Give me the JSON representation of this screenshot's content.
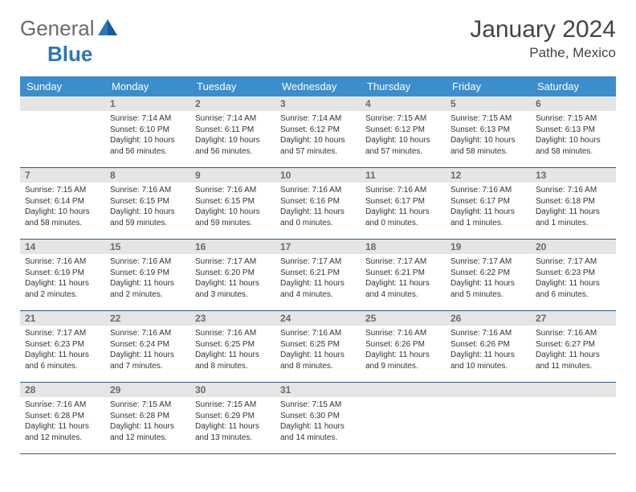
{
  "logo": {
    "text1": "General",
    "text2": "Blue"
  },
  "title": "January 2024",
  "location": "Pathe, Mexico",
  "colors": {
    "header_bg": "#3c8dcc",
    "header_text": "#ffffff",
    "daynum_bg": "#e5e5e5",
    "daynum_text": "#6a6a6a",
    "row_border": "#2d5b87",
    "logo_gray": "#6a6a6a",
    "logo_blue": "#2d76b5"
  },
  "weekdays": [
    "Sunday",
    "Monday",
    "Tuesday",
    "Wednesday",
    "Thursday",
    "Friday",
    "Saturday"
  ],
  "weeks": [
    [
      null,
      {
        "n": "1",
        "sr": "7:14 AM",
        "ss": "6:10 PM",
        "dh": "10",
        "dm": "56"
      },
      {
        "n": "2",
        "sr": "7:14 AM",
        "ss": "6:11 PM",
        "dh": "10",
        "dm": "56"
      },
      {
        "n": "3",
        "sr": "7:14 AM",
        "ss": "6:12 PM",
        "dh": "10",
        "dm": "57"
      },
      {
        "n": "4",
        "sr": "7:15 AM",
        "ss": "6:12 PM",
        "dh": "10",
        "dm": "57"
      },
      {
        "n": "5",
        "sr": "7:15 AM",
        "ss": "6:13 PM",
        "dh": "10",
        "dm": "58"
      },
      {
        "n": "6",
        "sr": "7:15 AM",
        "ss": "6:13 PM",
        "dh": "10",
        "dm": "58"
      }
    ],
    [
      {
        "n": "7",
        "sr": "7:15 AM",
        "ss": "6:14 PM",
        "dh": "10",
        "dm": "58"
      },
      {
        "n": "8",
        "sr": "7:16 AM",
        "ss": "6:15 PM",
        "dh": "10",
        "dm": "59"
      },
      {
        "n": "9",
        "sr": "7:16 AM",
        "ss": "6:15 PM",
        "dh": "10",
        "dm": "59"
      },
      {
        "n": "10",
        "sr": "7:16 AM",
        "ss": "6:16 PM",
        "dh": "11",
        "dm": "0"
      },
      {
        "n": "11",
        "sr": "7:16 AM",
        "ss": "6:17 PM",
        "dh": "11",
        "dm": "0"
      },
      {
        "n": "12",
        "sr": "7:16 AM",
        "ss": "6:17 PM",
        "dh": "11",
        "dm": "1"
      },
      {
        "n": "13",
        "sr": "7:16 AM",
        "ss": "6:18 PM",
        "dh": "11",
        "dm": "1"
      }
    ],
    [
      {
        "n": "14",
        "sr": "7:16 AM",
        "ss": "6:19 PM",
        "dh": "11",
        "dm": "2"
      },
      {
        "n": "15",
        "sr": "7:16 AM",
        "ss": "6:19 PM",
        "dh": "11",
        "dm": "2"
      },
      {
        "n": "16",
        "sr": "7:17 AM",
        "ss": "6:20 PM",
        "dh": "11",
        "dm": "3"
      },
      {
        "n": "17",
        "sr": "7:17 AM",
        "ss": "6:21 PM",
        "dh": "11",
        "dm": "4"
      },
      {
        "n": "18",
        "sr": "7:17 AM",
        "ss": "6:21 PM",
        "dh": "11",
        "dm": "4"
      },
      {
        "n": "19",
        "sr": "7:17 AM",
        "ss": "6:22 PM",
        "dh": "11",
        "dm": "5"
      },
      {
        "n": "20",
        "sr": "7:17 AM",
        "ss": "6:23 PM",
        "dh": "11",
        "dm": "6"
      }
    ],
    [
      {
        "n": "21",
        "sr": "7:17 AM",
        "ss": "6:23 PM",
        "dh": "11",
        "dm": "6"
      },
      {
        "n": "22",
        "sr": "7:16 AM",
        "ss": "6:24 PM",
        "dh": "11",
        "dm": "7"
      },
      {
        "n": "23",
        "sr": "7:16 AM",
        "ss": "6:25 PM",
        "dh": "11",
        "dm": "8"
      },
      {
        "n": "24",
        "sr": "7:16 AM",
        "ss": "6:25 PM",
        "dh": "11",
        "dm": "8"
      },
      {
        "n": "25",
        "sr": "7:16 AM",
        "ss": "6:26 PM",
        "dh": "11",
        "dm": "9"
      },
      {
        "n": "26",
        "sr": "7:16 AM",
        "ss": "6:26 PM",
        "dh": "11",
        "dm": "10"
      },
      {
        "n": "27",
        "sr": "7:16 AM",
        "ss": "6:27 PM",
        "dh": "11",
        "dm": "11"
      }
    ],
    [
      {
        "n": "28",
        "sr": "7:16 AM",
        "ss": "6:28 PM",
        "dh": "11",
        "dm": "12"
      },
      {
        "n": "29",
        "sr": "7:15 AM",
        "ss": "6:28 PM",
        "dh": "11",
        "dm": "12"
      },
      {
        "n": "30",
        "sr": "7:15 AM",
        "ss": "6:29 PM",
        "dh": "11",
        "dm": "13"
      },
      {
        "n": "31",
        "sr": "7:15 AM",
        "ss": "6:30 PM",
        "dh": "11",
        "dm": "14"
      },
      null,
      null,
      null
    ]
  ],
  "labels": {
    "sunrise": "Sunrise:",
    "sunset": "Sunset:",
    "daylight": "Daylight:",
    "hours": "hours",
    "and": "and",
    "minutes": "minutes."
  }
}
